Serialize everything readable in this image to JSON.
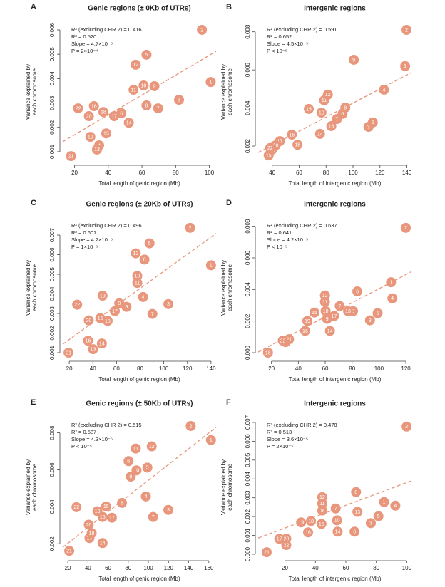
{
  "chart_data": [
    {
      "type": "scatter",
      "panel": "A",
      "title": "Genic regions (± 0Kb of UTRs)",
      "xlabel": "Total length of genic region (Mb)",
      "ylabel": [
        "Variance explained by",
        "each chromosome"
      ],
      "annotations": [
        "R² (excluding CHR 2) = 0.416",
        "R² = 0.520",
        "Slope = 4.7×10⁻⁵",
        "P = 2×10⁻⁴"
      ],
      "point_labels": [
        "1",
        "2",
        "3",
        "4",
        "5",
        "6",
        "7",
        "8",
        "9",
        "10",
        "11",
        "12",
        "13",
        "14",
        "15",
        "16",
        "17",
        "18",
        "19",
        "20",
        "21",
        "22"
      ],
      "x": [
        100.8,
        95.6,
        82,
        34.6,
        62.7,
        47.8,
        69.6,
        62.7,
        67.4,
        61,
        55,
        56.3,
        33.3,
        52.2,
        38.8,
        31.5,
        43.5,
        37.1,
        29.4,
        28.5,
        17.9,
        22.1
      ],
      "values": [
        0.00386,
        0.006,
        0.00313,
        0.00126,
        0.00498,
        0.00258,
        0.00278,
        0.0029,
        0.00369,
        0.00372,
        0.00354,
        0.00457,
        0.00109,
        0.00219,
        0.00175,
        0.00287,
        0.00246,
        0.00263,
        0.00161,
        0.00246,
        0.00082,
        0.00278
      ],
      "color": "#e8967c",
      "xlim": [
        13,
        104
      ],
      "ylim": [
        0.00056,
        0.00635
      ],
      "xticks": [
        20,
        40,
        60,
        80,
        100
      ],
      "yticks": [
        0.001,
        0.002,
        0.003,
        0.004,
        0.005,
        0.006
      ],
      "trend_line": {
        "x": [
          13,
          104
        ],
        "y": [
          0.00141,
          0.00512
        ],
        "color": "#e8967c",
        "dashed": true
      }
    },
    {
      "type": "scatter",
      "panel": "B",
      "title": "Intergenic regions",
      "xlabel": "Total length of intergenic region (Mb)",
      "ylabel": [
        "Variance explained by",
        "each chromosome"
      ],
      "annotations": [
        "R² (excluding CHR 2) = 0.591",
        "R² = 0.652",
        "Slope = 4.5×10⁻⁵",
        "P < 10⁻⁵"
      ],
      "point_labels": [
        "1",
        "2",
        "3",
        "4",
        "5",
        "6",
        "7",
        "8",
        "9",
        "10",
        "11",
        "12",
        "13",
        "14",
        "15",
        "16",
        "17",
        "18",
        "19",
        "20",
        "21",
        "22"
      ],
      "x": [
        138.7,
        139.7,
        111.5,
        123,
        114.7,
        92.2,
        88,
        94.3,
        100.6,
        76.6,
        78.6,
        81.3,
        83.9,
        75.5,
        67.2,
        54.6,
        45.7,
        58.8,
        37.4,
        42.6,
        40,
        38.5
      ],
      "values": [
        0.0062,
        0.0081,
        0.00301,
        0.00496,
        0.00324,
        0.00369,
        0.00342,
        0.00402,
        0.00653,
        0.00376,
        0.0044,
        0.0047,
        0.00305,
        0.00264,
        0.00395,
        0.0026,
        0.00226,
        0.00207,
        0.00151,
        0.00204,
        0.00181,
        0.0019
      ],
      "color": "#e8967c",
      "xlim": [
        29.6,
        143.4
      ],
      "ylim": [
        0.00114,
        0.00855
      ],
      "xticks": [
        40,
        60,
        80,
        100,
        120,
        140
      ],
      "yticks": [
        0.002,
        0.004,
        0.006,
        0.008
      ],
      "trend_line": {
        "x": [
          29.6,
          143.4
        ],
        "y": [
          0.00166,
          0.00586
        ],
        "color": "#e8967c",
        "dashed": true
      }
    },
    {
      "type": "scatter",
      "panel": "C",
      "title": "Genic regions (± 20Kb of UTRs)",
      "xlabel": "Total length of genic region (Mb)",
      "ylabel": [
        "Variance explained by",
        "each chromosome"
      ],
      "annotations": [
        "R² (excluding CHR 2) = 0.496",
        "R² = 0.601",
        "Slope = 4.2×10⁻⁵",
        "P = 1×10⁻⁵"
      ],
      "point_labels": [
        "1",
        "2",
        "3",
        "4",
        "5",
        "6",
        "7",
        "8",
        "9",
        "10",
        "11",
        "12",
        "13",
        "14",
        "15",
        "16",
        "17",
        "18",
        "19",
        "20",
        "21",
        "22"
      ],
      "x": [
        140,
        122.3,
        103.9,
        82.5,
        88,
        83.7,
        90.4,
        62.3,
        68.4,
        77.6,
        77.6,
        76.3,
        40.2,
        47.6,
        46.3,
        35.9,
        58.6,
        52.5,
        48.2,
        36.5,
        19.4,
        26.7
      ],
      "values": [
        0.00546,
        0.00737,
        0.00348,
        0.00384,
        0.00658,
        0.00575,
        0.00298,
        0.00352,
        0.00334,
        0.00492,
        0.00456,
        0.00607,
        0.00118,
        0.00147,
        0.00276,
        0.00161,
        0.00312,
        0.00262,
        0.00391,
        0.00265,
        0.001,
        0.00345
      ],
      "color": "#e8967c",
      "xlim": [
        14.5,
        144.3
      ],
      "ylim": [
        0.00071,
        0.00791
      ],
      "xticks": [
        20,
        40,
        60,
        80,
        100,
        120,
        140
      ],
      "yticks": [
        0.001,
        0.002,
        0.003,
        0.004,
        0.005,
        0.006,
        0.007
      ],
      "trend_line": {
        "x": [
          14.5,
          144.3
        ],
        "y": [
          0.00143,
          0.00708
        ],
        "color": "#e8967c",
        "dashed": true
      }
    },
    {
      "type": "scatter",
      "panel": "D",
      "title": "Intergenic regions",
      "xlabel": "Total length of intergenic region (Mb)",
      "ylabel": [
        "Variance explained by",
        "each chromosome"
      ],
      "annotations": [
        "R² (excluding CHR 2) = 0.637",
        "R² = 0.641",
        "Slope = 4.2×10⁻⁵",
        "P < 10⁻⁵"
      ],
      "point_labels": [
        "1",
        "2",
        "3",
        "4",
        "5",
        "6",
        "7",
        "8",
        "9",
        "10",
        "11",
        "12",
        "13",
        "14",
        "15",
        "16",
        "17",
        "18",
        "19",
        "20",
        "21",
        "22"
      ],
      "x": [
        109,
        120,
        93.3,
        110,
        99,
        83.9,
        70.8,
        80.7,
        61.4,
        60.3,
        59.8,
        59.8,
        77,
        63.5,
        52,
        45.1,
        66.6,
        17.4,
        46.7,
        30.5,
        33.1,
        28.4
      ],
      "values": [
        0.00446,
        0.0079,
        0.00205,
        0.00344,
        0.0025,
        0.00388,
        0.00295,
        0.00263,
        0.00214,
        0.00263,
        0.00321,
        0.00362,
        0.00263,
        0.00138,
        0.00254,
        0.00138,
        0.00232,
        0,
        0.00201,
        0.00067,
        0.00085,
        0.00076
      ],
      "color": "#e8967c",
      "xlim": [
        10.1,
        124.2
      ],
      "ylim": [
        -0.00036,
        0.00857
      ],
      "xticks": [
        20,
        40,
        60,
        80,
        100,
        120
      ],
      "yticks": [
        {
          "value": 0,
          "label": "0.000"
        },
        0.002,
        0.004,
        0.006,
        0.008
      ],
      "trend_line": {
        "x": [
          10.1,
          124.2
        ],
        "y": [
          4e-05,
          0.00513
        ],
        "color": "#e8967c",
        "dashed": true
      }
    },
    {
      "type": "scatter",
      "panel": "E",
      "title": "Genic regions (± 50Kb of UTRs)",
      "xlabel": "Total length of genic region (Mb)",
      "ylabel": [
        "Variance explained by",
        "each chromosome"
      ],
      "annotations": [
        "R² (excluding CHR 2) = 0.515",
        "R² = 0.587",
        "Slope = 4.3×10⁻⁵",
        "P < 10⁻⁵"
      ],
      "point_labels": [
        "1",
        "2",
        "3",
        "4",
        "5",
        "6",
        "7",
        "8",
        "9",
        "10",
        "11",
        "12",
        "13",
        "14",
        "15",
        "16",
        "17",
        "18",
        "19",
        "20",
        "21",
        "22"
      ],
      "x": [
        162.1,
        142,
        119.8,
        97.5,
        99,
        80.3,
        104.7,
        73.8,
        82.5,
        88.2,
        87.5,
        103.3,
        41.5,
        54.5,
        58,
        54.5,
        63.8,
        43.7,
        49.4,
        40.8,
        21.4,
        28.6
      ],
      "values": [
        0.00761,
        0.00837,
        0.00383,
        0.00456,
        0.00612,
        0.00647,
        0.00345,
        0.00421,
        0.00563,
        0.00597,
        0.00715,
        0.00727,
        0.00231,
        0.00204,
        0.00402,
        0.00345,
        0.00341,
        0.00257,
        0.00376,
        0.00303,
        0.00162,
        0.00398
      ],
      "color": "#e8967c",
      "xlim": [
        15,
        167.2
      ],
      "ylim": [
        0.00124,
        0.00887
      ],
      "xticks": [
        20,
        40,
        60,
        80,
        100,
        120,
        140,
        160
      ],
      "yticks": [
        0.002,
        0.004,
        0.006,
        0.008
      ],
      "trend_line": {
        "x": [
          15,
          167.2
        ],
        "y": [
          0.00181,
          0.0083
        ],
        "color": "#e8967c",
        "dashed": true
      }
    },
    {
      "type": "scatter",
      "panel": "F",
      "title": "Intergenic regions",
      "xlabel": "Total length of intergenic region (Mb)",
      "ylabel": [
        "Variance explained by",
        "each chromosome"
      ],
      "annotations": [
        "R² (excluding CHR 2) = 0.478",
        "R² = 0.513",
        "Slope = 3.6×10⁻⁵",
        "P = 2×10⁻⁵"
      ],
      "point_labels": [
        "1",
        "2",
        "3",
        "4",
        "5",
        "6",
        "7",
        "8",
        "9",
        "10",
        "11",
        "12",
        "13",
        "14",
        "15",
        "16",
        "17",
        "18",
        "19",
        "20",
        "21",
        "22"
      ],
      "x": [
        85.1,
        99.9,
        76.4,
        92.5,
        81.4,
        65.7,
        53.3,
        66.7,
        44.5,
        54.2,
        44.5,
        44.5,
        67.6,
        54.6,
        44,
        35.2,
        16.3,
        37.1,
        30.6,
        20.9,
        8,
        20.9
      ],
      "values": [
        0.00277,
        0.00678,
        0.00165,
        0.00258,
        0.00202,
        0.0012,
        0.00243,
        0.0033,
        0.00232,
        0.0018,
        0.0027,
        0.00303,
        0.00225,
        0.0012,
        0.00161,
        0.00116,
        0.00082,
        0.00176,
        0.00169,
        0.00082,
        0.00011,
        0.00049
      ],
      "color": "#e8967c",
      "xlim": [
        2.4,
        103.1
      ],
      "ylim": [
        -0.00019,
        0.0073
      ],
      "xticks": [
        20,
        40,
        60,
        80,
        100
      ],
      "yticks": [
        {
          "value": 0,
          "label": "0.000"
        },
        0.001,
        0.002,
        0.003,
        0.004,
        0.005,
        0.006,
        0.007
      ],
      "trend_line": {
        "x": [
          2.4,
          103.1
        ],
        "y": [
          0.00086,
          0.0039
        ],
        "color": "#e8967c",
        "dashed": true
      }
    }
  ]
}
